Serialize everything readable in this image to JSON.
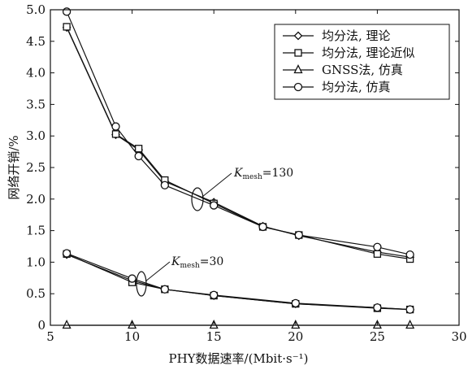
{
  "chart_data": {
    "type": "line",
    "xlabel": "PHY数据速率/(Mbit·s⁻¹)",
    "ylabel": "网络开销/%",
    "xlim": [
      5,
      30
    ],
    "ylim": [
      0,
      5.0
    ],
    "x_ticks": [
      "5",
      "10",
      "15",
      "20",
      "25",
      "30"
    ],
    "y_ticks": [
      "0",
      "0.5",
      "1.0",
      "1.5",
      "2.0",
      "2.5",
      "3.0",
      "3.5",
      "4.0",
      "4.5",
      "5.0"
    ],
    "grid": false,
    "legend_position": "top-right",
    "legend": [
      {
        "label": "均分法, 理论",
        "marker": "diamond"
      },
      {
        "label": "均分法, 理论近似",
        "marker": "square"
      },
      {
        "label": "GNSS法, 仿真",
        "marker": "triangle"
      },
      {
        "label": "均分法, 仿真",
        "marker": "circle"
      }
    ],
    "groups": [
      {
        "annotation": "K",
        "annotation_sub": "mesh",
        "annotation_value": "=130",
        "series": [
          {
            "label": "均分法, 理论",
            "marker": "diamond",
            "x": [
              6,
              9,
              10.4,
              12,
              15,
              18,
              20.2,
              25,
              27
            ],
            "y": [
              4.72,
              3.02,
              2.78,
              2.28,
              1.95,
              1.57,
              1.42,
              1.16,
              1.08
            ]
          },
          {
            "label": "均分法, 理论近似",
            "marker": "square",
            "x": [
              6,
              9,
              10.4,
              12,
              15,
              18,
              20.2,
              25,
              27
            ],
            "y": [
              4.73,
              3.03,
              2.8,
              2.3,
              1.93,
              1.56,
              1.43,
              1.13,
              1.05
            ]
          },
          {
            "label": "均分法, 仿真",
            "marker": "circle",
            "x": [
              6,
              9,
              10.4,
              12,
              15,
              18,
              20.2,
              25,
              27
            ],
            "y": [
              4.97,
              3.15,
              2.68,
              2.22,
              1.9,
              1.56,
              1.43,
              1.24,
              1.12
            ]
          }
        ]
      },
      {
        "annotation": "K",
        "annotation_sub": "mesh",
        "annotation_value": "=30",
        "series": [
          {
            "label": "均分法, 理论",
            "marker": "diamond",
            "x": [
              6,
              10,
              12,
              15,
              20,
              25,
              27
            ],
            "y": [
              1.12,
              0.71,
              0.57,
              0.47,
              0.34,
              0.28,
              0.25
            ]
          },
          {
            "label": "均分法, 理论近似",
            "marker": "square",
            "x": [
              6,
              10,
              12,
              15,
              20,
              25,
              27
            ],
            "y": [
              1.13,
              0.68,
              0.57,
              0.47,
              0.34,
              0.27,
              0.25
            ]
          },
          {
            "label": "均分法, 仿真",
            "marker": "circle",
            "x": [
              6,
              10,
              12,
              15,
              20,
              25,
              27
            ],
            "y": [
              1.14,
              0.74,
              0.57,
              0.48,
              0.35,
              0.28,
              0.25
            ]
          }
        ]
      },
      {
        "series": [
          {
            "label": "GNSS法, 仿真",
            "marker": "triangle",
            "x": [
              6,
              10,
              15,
              20,
              25,
              27
            ],
            "y": [
              0,
              0,
              0,
              0,
              0,
              0
            ]
          }
        ]
      }
    ]
  }
}
